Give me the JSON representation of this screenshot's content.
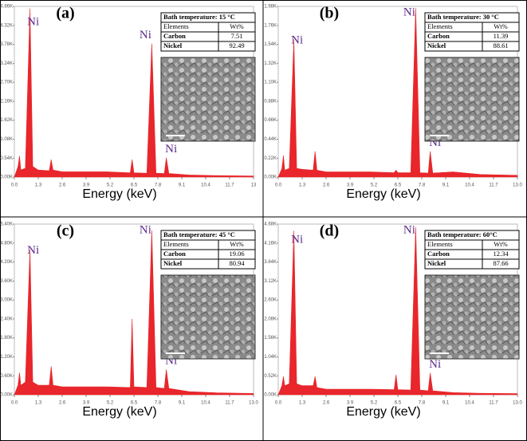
{
  "chart_data": [
    {
      "type": "area",
      "label": "(a)",
      "x_label": "Energy (keV)",
      "color": "#e8262b",
      "x": [
        0,
        0.2,
        0.28,
        0.35,
        0.6,
        0.85,
        1.0,
        1.3,
        1.9,
        2.0,
        2.1,
        2.6,
        5.0,
        6.3,
        6.4,
        6.5,
        7.2,
        7.47,
        7.7,
        8.15,
        8.26,
        8.4,
        9.5,
        11,
        13
      ],
      "values": [
        0,
        300,
        600,
        200,
        250,
        4800,
        300,
        200,
        180,
        500,
        200,
        150,
        150,
        120,
        500,
        120,
        110,
        3800,
        110,
        100,
        550,
        100,
        60,
        40,
        30
      ],
      "xlim": [
        0,
        13
      ],
      "xticks": [
        {
          "value": 0,
          "label": "0.0"
        },
        1.3,
        2.6,
        3.9,
        5.2,
        6.5,
        7.8,
        9.1,
        10.4,
        11.7,
        13
      ],
      "ylim": [
        0,
        4860
      ],
      "yticks": [
        {
          "value": 0,
          "label": "0.00K"
        },
        {
          "value": 540,
          "label": "0.54K"
        },
        {
          "value": 1080,
          "label": "1.08K"
        },
        {
          "value": 1620,
          "label": "1.62K"
        },
        {
          "value": 2160,
          "label": "2.16K"
        },
        {
          "value": 2700,
          "label": "2.70K"
        },
        {
          "value": 3240,
          "label": "3.24K"
        },
        {
          "value": 3780,
          "label": "3.78K"
        },
        {
          "value": 4320,
          "label": "4.32K"
        },
        {
          "value": 4860,
          "label": "4.86K"
        }
      ],
      "annotations": [
        "Ni",
        "Ni",
        "Ni"
      ],
      "table": {
        "title": "Bath temperature: 15 °C",
        "rows": [
          [
            "Elements",
            "Wt%"
          ],
          [
            "Carbon",
            "7.51"
          ],
          [
            "Nickel",
            "92.49"
          ]
        ]
      }
    },
    {
      "type": "area",
      "label": "(b)",
      "x_label": "Energy (keV)",
      "color": "#e8262b",
      "x": [
        0,
        0.2,
        0.28,
        0.35,
        0.6,
        0.85,
        1.0,
        1.3,
        1.9,
        2.0,
        2.1,
        2.6,
        5.0,
        6.3,
        6.4,
        6.5,
        7.2,
        7.47,
        7.7,
        8.15,
        8.26,
        8.4,
        9.5,
        11,
        13
      ],
      "values": [
        0,
        100,
        250,
        80,
        100,
        1600,
        100,
        90,
        80,
        300,
        80,
        60,
        60,
        50,
        80,
        50,
        50,
        1960,
        50,
        45,
        300,
        45,
        60,
        30,
        20
      ],
      "xlim": [
        0,
        13
      ],
      "xticks": [
        {
          "value": 0,
          "label": "0.0"
        },
        1.3,
        2.6,
        3.9,
        5.2,
        6.5,
        7.8,
        9.1,
        10.4,
        11.7,
        {
          "value": 13,
          "label": "13.0"
        }
      ],
      "ylim": [
        0,
        1980
      ],
      "yticks": [
        {
          "value": 0,
          "label": "0.00K"
        },
        {
          "value": 220,
          "label": "0.22K"
        },
        {
          "value": 440,
          "label": "0.44K"
        },
        {
          "value": 660,
          "label": "0.66K"
        },
        {
          "value": 880,
          "label": "0.88K"
        },
        {
          "value": 1100,
          "label": "1.10K"
        },
        {
          "value": 1320,
          "label": "1.32K"
        },
        {
          "value": 1540,
          "label": "1.54K"
        },
        {
          "value": 1760,
          "label": "1.76K"
        },
        {
          "value": 1980,
          "label": "1.98K"
        }
      ],
      "annotations": [
        "Ni",
        "Ni",
        "Ni"
      ],
      "table": {
        "title": "Bath temperature: 30 °C",
        "rows": [
          [
            "Elements",
            "Wt%"
          ],
          [
            "Carbon",
            "11.39"
          ],
          [
            "Nickel",
            "88.61"
          ]
        ]
      }
    },
    {
      "type": "area",
      "label": "(c)",
      "x_label": "Energy (keV)",
      "color": "#e8262b",
      "x": [
        0,
        0.2,
        0.28,
        0.35,
        0.6,
        0.85,
        1.0,
        1.3,
        1.9,
        2.0,
        2.1,
        2.6,
        5.0,
        6.3,
        6.4,
        6.5,
        7.2,
        7.47,
        7.7,
        8.15,
        8.26,
        8.4,
        9.5,
        11,
        13
      ],
      "values": [
        0,
        300,
        700,
        300,
        400,
        4600,
        400,
        300,
        300,
        900,
        300,
        250,
        250,
        230,
        2400,
        250,
        230,
        5200,
        230,
        200,
        800,
        200,
        100,
        60,
        40
      ],
      "xlim": [
        0,
        13
      ],
      "xticks": [
        {
          "value": 0,
          "label": "0.0"
        },
        1.3,
        2.6,
        3.9,
        5.2,
        6.5,
        7.8,
        9.1,
        10.4,
        11.7,
        {
          "value": 13,
          "label": "13.0"
        }
      ],
      "ylim": [
        0,
        5400
      ],
      "yticks": [
        {
          "value": 0,
          "label": "0.00K"
        },
        {
          "value": 600,
          "label": "0.60K"
        },
        {
          "value": 1200,
          "label": "1.20K"
        },
        {
          "value": 1800,
          "label": "1.80K"
        },
        {
          "value": 2400,
          "label": "2.40K"
        },
        {
          "value": 3000,
          "label": "3.00K"
        },
        {
          "value": 3600,
          "label": "3.60K"
        },
        {
          "value": 4200,
          "label": "4.20K"
        },
        {
          "value": 4800,
          "label": "4.80K"
        },
        {
          "value": 5400,
          "label": "5.40K"
        }
      ],
      "annotations": [
        "Ni",
        "Ni",
        "Ni"
      ],
      "table": {
        "title": "Bath temperature: 45 °C",
        "rows": [
          [
            "Elements",
            "Wt%"
          ],
          [
            "Carbon",
            "19.06"
          ],
          [
            "Nickel",
            "80.94"
          ]
        ]
      }
    },
    {
      "type": "area",
      "label": "(d)",
      "x_label": "Energy (keV)",
      "color": "#e8262b",
      "x": [
        0,
        0.2,
        0.28,
        0.35,
        0.6,
        0.85,
        1.0,
        1.3,
        1.9,
        2.0,
        2.1,
        2.6,
        5.0,
        6.3,
        6.4,
        6.5,
        7.2,
        7.47,
        7.7,
        8.15,
        8.26,
        8.4,
        9.5,
        11,
        13
      ],
      "values": [
        0,
        250,
        500,
        250,
        300,
        4500,
        300,
        250,
        250,
        500,
        200,
        150,
        150,
        140,
        550,
        140,
        130,
        4600,
        130,
        110,
        600,
        110,
        60,
        40,
        30
      ],
      "xlim": [
        0,
        13
      ],
      "xticks": [
        {
          "value": 0,
          "label": "0.0"
        },
        1.3,
        2.6,
        3.9,
        5.2,
        6.5,
        7.8,
        9.1,
        10.4,
        11.7,
        {
          "value": 13,
          "label": "13.0"
        }
      ],
      "ylim": [
        0,
        4680
      ],
      "yticks": [
        {
          "value": 0,
          "label": "0.00K"
        },
        {
          "value": 520,
          "label": "0.52K"
        },
        {
          "value": 1040,
          "label": "1.04K"
        },
        {
          "value": 1560,
          "label": "1.56K"
        },
        {
          "value": 2080,
          "label": "2.08K"
        },
        {
          "value": 2600,
          "label": "2.60K"
        },
        {
          "value": 3120,
          "label": "3.12K"
        },
        {
          "value": 3640,
          "label": "3.64K"
        },
        {
          "value": 4160,
          "label": "4.16K"
        },
        {
          "value": 4680,
          "label": "4.68K"
        }
      ],
      "annotations": [
        "Ni",
        "Ni",
        "Ni"
      ],
      "table": {
        "title": "Bath temperature:  60°C",
        "rows": [
          [
            "Elements",
            "Wt%"
          ],
          [
            "Carbon",
            "12.34"
          ],
          [
            "Nickel",
            "87.66"
          ]
        ]
      }
    }
  ]
}
